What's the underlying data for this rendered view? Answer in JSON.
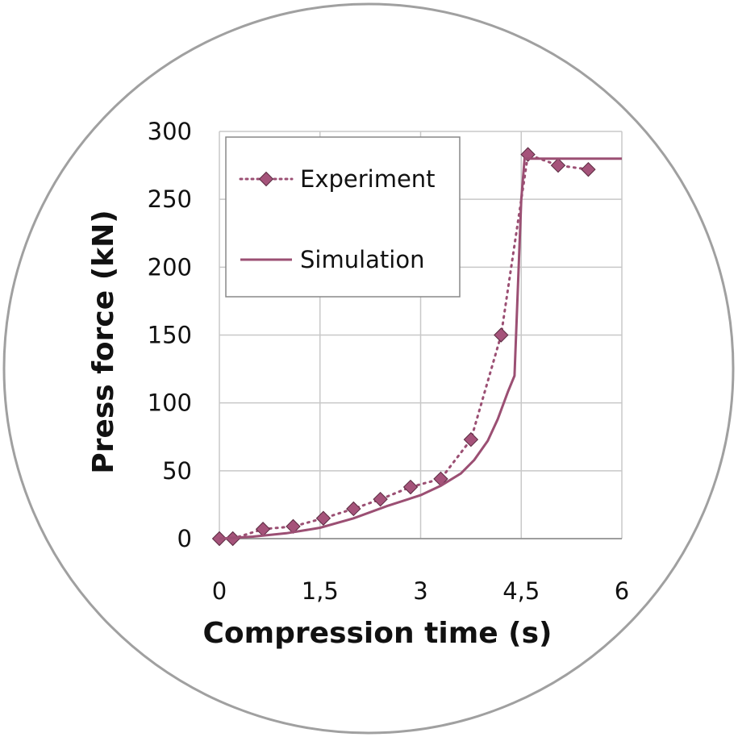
{
  "chart_data": {
    "type": "line",
    "xlabel": "Compression time (s)",
    "ylabel": "Press force (kN)",
    "xlim": [
      0,
      6
    ],
    "ylim": [
      0,
      300
    ],
    "x_ticks": [
      "0",
      "1,5",
      "3",
      "4,5",
      "6"
    ],
    "y_ticks": [
      "0",
      "50",
      "100",
      "150",
      "200",
      "250",
      "300"
    ],
    "grid": true,
    "legend": "top-left",
    "frame": "circle",
    "colors": {
      "series": "#9b4f73",
      "marker": "#a5537a",
      "grid": "#c8c8c8",
      "frame": "#a0a0a0"
    },
    "series": [
      {
        "name": "Experiment",
        "style": "dotted-markers",
        "x": [
          0,
          0.2,
          0.65,
          1.1,
          1.55,
          2.0,
          2.4,
          2.85,
          3.3,
          3.75,
          4.2,
          4.6,
          5.05,
          5.5
        ],
        "y": [
          0,
          0,
          7,
          9,
          15,
          22,
          29,
          38,
          44,
          73,
          150,
          283,
          275,
          272
        ]
      },
      {
        "name": "Simulation",
        "style": "solid",
        "x": [
          0,
          0.5,
          1.0,
          1.5,
          2.0,
          2.5,
          3.0,
          3.3,
          3.6,
          3.8,
          4.0,
          4.15,
          4.3,
          4.4,
          4.5,
          4.55,
          5.0,
          6.0
        ],
        "y": [
          0,
          1.5,
          4,
          8,
          15,
          24,
          32,
          39,
          48,
          58,
          72,
          88,
          108,
          120,
          250,
          280,
          280,
          280
        ]
      }
    ]
  }
}
